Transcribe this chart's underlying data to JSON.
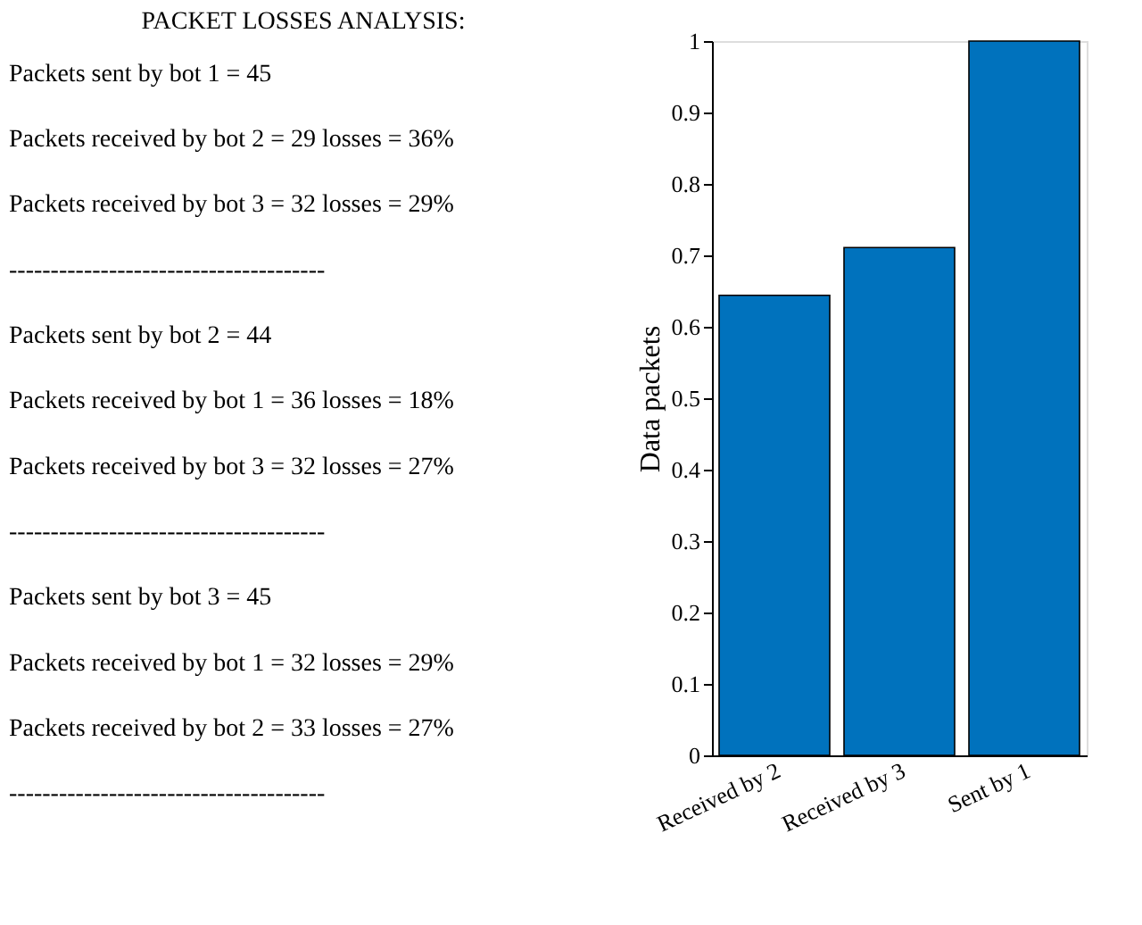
{
  "chart_data": {
    "type": "bar",
    "title": "PACKET LOSSES ANALYSIS:",
    "ylabel": "Data packets",
    "categories": [
      "Received by 2",
      "Received by 3",
      "Sent by 1"
    ],
    "values": [
      0.644,
      0.711,
      1.0
    ],
    "color": "#0072bd",
    "ylim": [
      0,
      1
    ],
    "yticks": [
      0,
      0.1,
      0.2,
      0.3,
      0.4,
      0.5,
      0.6,
      0.7,
      0.8,
      0.9,
      1
    ],
    "grid": false,
    "annotations": [
      "Packets sent by bot 1 = 45",
      "Packets received by bot 2 = 29   losses = 36%",
      "Packets received by bot 3 = 32   losses = 29%",
      "--------------------------------------",
      "Packets sent by bot 2 = 44",
      "Packets received by bot 1 = 36   losses = 18%",
      "Packets received by bot 3 = 32   losses = 27%",
      "--------------------------------------",
      "Packets sent by bot 3 = 45",
      "Packets received by bot 1 = 32   losses = 29%",
      "Packets received by bot 2 = 33   losses = 27%",
      "--------------------------------------"
    ]
  }
}
